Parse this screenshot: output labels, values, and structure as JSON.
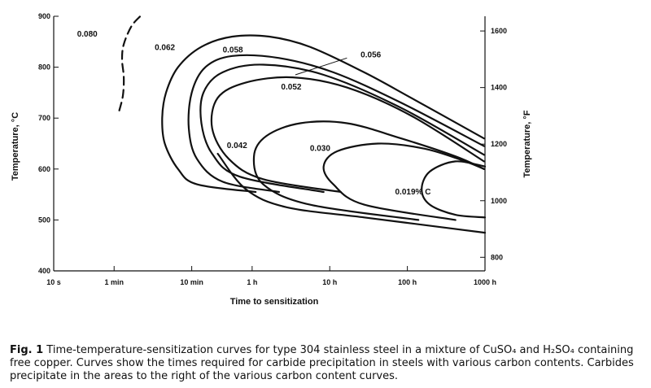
{
  "chart_data": {
    "type": "line",
    "xscale": "log",
    "x_tick_labels": [
      "10 s",
      "1 min",
      "10 min",
      "1 h",
      "10 h",
      "100 h",
      "1000 h"
    ],
    "x_tick_seconds": [
      10,
      60,
      600,
      3600,
      36000,
      360000,
      3600000
    ],
    "xlabel": "Time to sensitization",
    "ylabel_left": "Temperature, °C",
    "ylim_left": [
      400,
      900
    ],
    "y_ticks_left": [
      400,
      500,
      600,
      700,
      800,
      900
    ],
    "ylabel_right": "Temperature, °F",
    "y_ticks_right": [
      800,
      1000,
      1200,
      1400,
      1600
    ],
    "series": [
      {
        "name": "0.080",
        "style": "dashed",
        "x_unit": "s",
        "points": [
          [
            70,
            715
          ],
          [
            78,
            745
          ],
          [
            80,
            780
          ],
          [
            76,
            815
          ],
          [
            80,
            845
          ],
          [
            100,
            880
          ],
          [
            130,
            900
          ]
        ]
      },
      {
        "name": "0.062",
        "x_unit": "s",
        "points": [
          [
            4000,
            555
          ],
          [
            700,
            570
          ],
          [
            400,
            600
          ],
          [
            270,
            650
          ],
          [
            250,
            700
          ],
          [
            280,
            750
          ],
          [
            400,
            800
          ],
          [
            800,
            840
          ],
          [
            2000,
            860
          ],
          [
            6000,
            860
          ],
          [
            20000,
            840
          ],
          [
            100000,
            790
          ],
          [
            400000,
            740
          ],
          [
            3500000,
            660
          ]
        ]
      },
      {
        "name": "0.058",
        "x_unit": "s",
        "points": [
          [
            8000,
            555
          ],
          [
            1500,
            575
          ],
          [
            700,
            620
          ],
          [
            550,
            680
          ],
          [
            600,
            750
          ],
          [
            900,
            800
          ],
          [
            2000,
            822
          ],
          [
            8000,
            818
          ],
          [
            40000,
            790
          ],
          [
            300000,
            730
          ],
          [
            3500000,
            645
          ]
        ]
      },
      {
        "name": "0.056",
        "x_unit": "s",
        "points": [
          [
            30000,
            555
          ],
          [
            2500,
            585
          ],
          [
            1100,
            630
          ],
          [
            800,
            690
          ],
          [
            850,
            750
          ],
          [
            1500,
            790
          ],
          [
            5000,
            805
          ],
          [
            30000,
            785
          ],
          [
            300000,
            720
          ],
          [
            3500000,
            628
          ]
        ]
      },
      {
        "name": "0.052",
        "x_unit": "s",
        "points": [
          [
            50000,
            555
          ],
          [
            5000,
            580
          ],
          [
            1800,
            620
          ],
          [
            1100,
            680
          ],
          [
            1300,
            740
          ],
          [
            3000,
            770
          ],
          [
            12000,
            780
          ],
          [
            60000,
            760
          ],
          [
            400000,
            705
          ],
          [
            3500000,
            615
          ]
        ]
      },
      {
        "name": "0.042",
        "x_unit": "s",
        "points": [
          [
            500000,
            500
          ],
          [
            20000,
            530
          ],
          [
            5000,
            570
          ],
          [
            3800,
            625
          ],
          [
            5500,
            665
          ],
          [
            15000,
            690
          ],
          [
            60000,
            690
          ],
          [
            300000,
            660
          ],
          [
            1500000,
            625
          ],
          [
            3500000,
            600
          ]
        ]
      },
      {
        "name": "0.030",
        "x_unit": "s",
        "points": [
          [
            1500000,
            500
          ],
          [
            100000,
            530
          ],
          [
            40000,
            570
          ],
          [
            30000,
            605
          ],
          [
            45000,
            635
          ],
          [
            150000,
            650
          ],
          [
            600000,
            640
          ],
          [
            2000000,
            615
          ],
          [
            3500000,
            600
          ]
        ]
      },
      {
        "name": "0.019% C",
        "x_unit": "s",
        "points": [
          [
            3600000,
            505
          ],
          [
            1500000,
            510
          ],
          [
            700000,
            530
          ],
          [
            550000,
            560
          ],
          [
            700000,
            595
          ],
          [
            1500000,
            615
          ],
          [
            3600000,
            605
          ]
        ]
      },
      {
        "name": "",
        "x_unit": "s",
        "points": [
          [
            1300,
            630
          ],
          [
            3000,
            560
          ],
          [
            10000,
            525
          ],
          [
            100000,
            505
          ],
          [
            600000,
            490
          ],
          [
            3600000,
            475
          ]
        ]
      }
    ],
    "annotations": [
      {
        "text": "0.080",
        "x": 20,
        "y": 860
      },
      {
        "text": "0.062",
        "x": 200,
        "y": 834
      },
      {
        "text": "0.058",
        "x": 1500,
        "y": 829
      },
      {
        "text": "0.056",
        "x": 90000,
        "y": 819
      },
      {
        "text": "0.052",
        "x": 8500,
        "y": 756
      },
      {
        "text": "0.042",
        "x": 1700,
        "y": 641
      },
      {
        "text": "0.030",
        "x": 20000,
        "y": 636
      },
      {
        "text": "0.019% C",
        "x": 250000,
        "y": 550
      }
    ]
  },
  "caption": {
    "fig_label": "Fig. 1",
    "text": "Time-temperature-sensitization curves for type 304 stainless steel in a mixture of CuSO₄ and H₂SO₄ containing free copper. Curves show the times required for carbide precipitation in steels with various carbon contents. Carbides precipitate in the areas to the right of the various carbon content curves."
  }
}
